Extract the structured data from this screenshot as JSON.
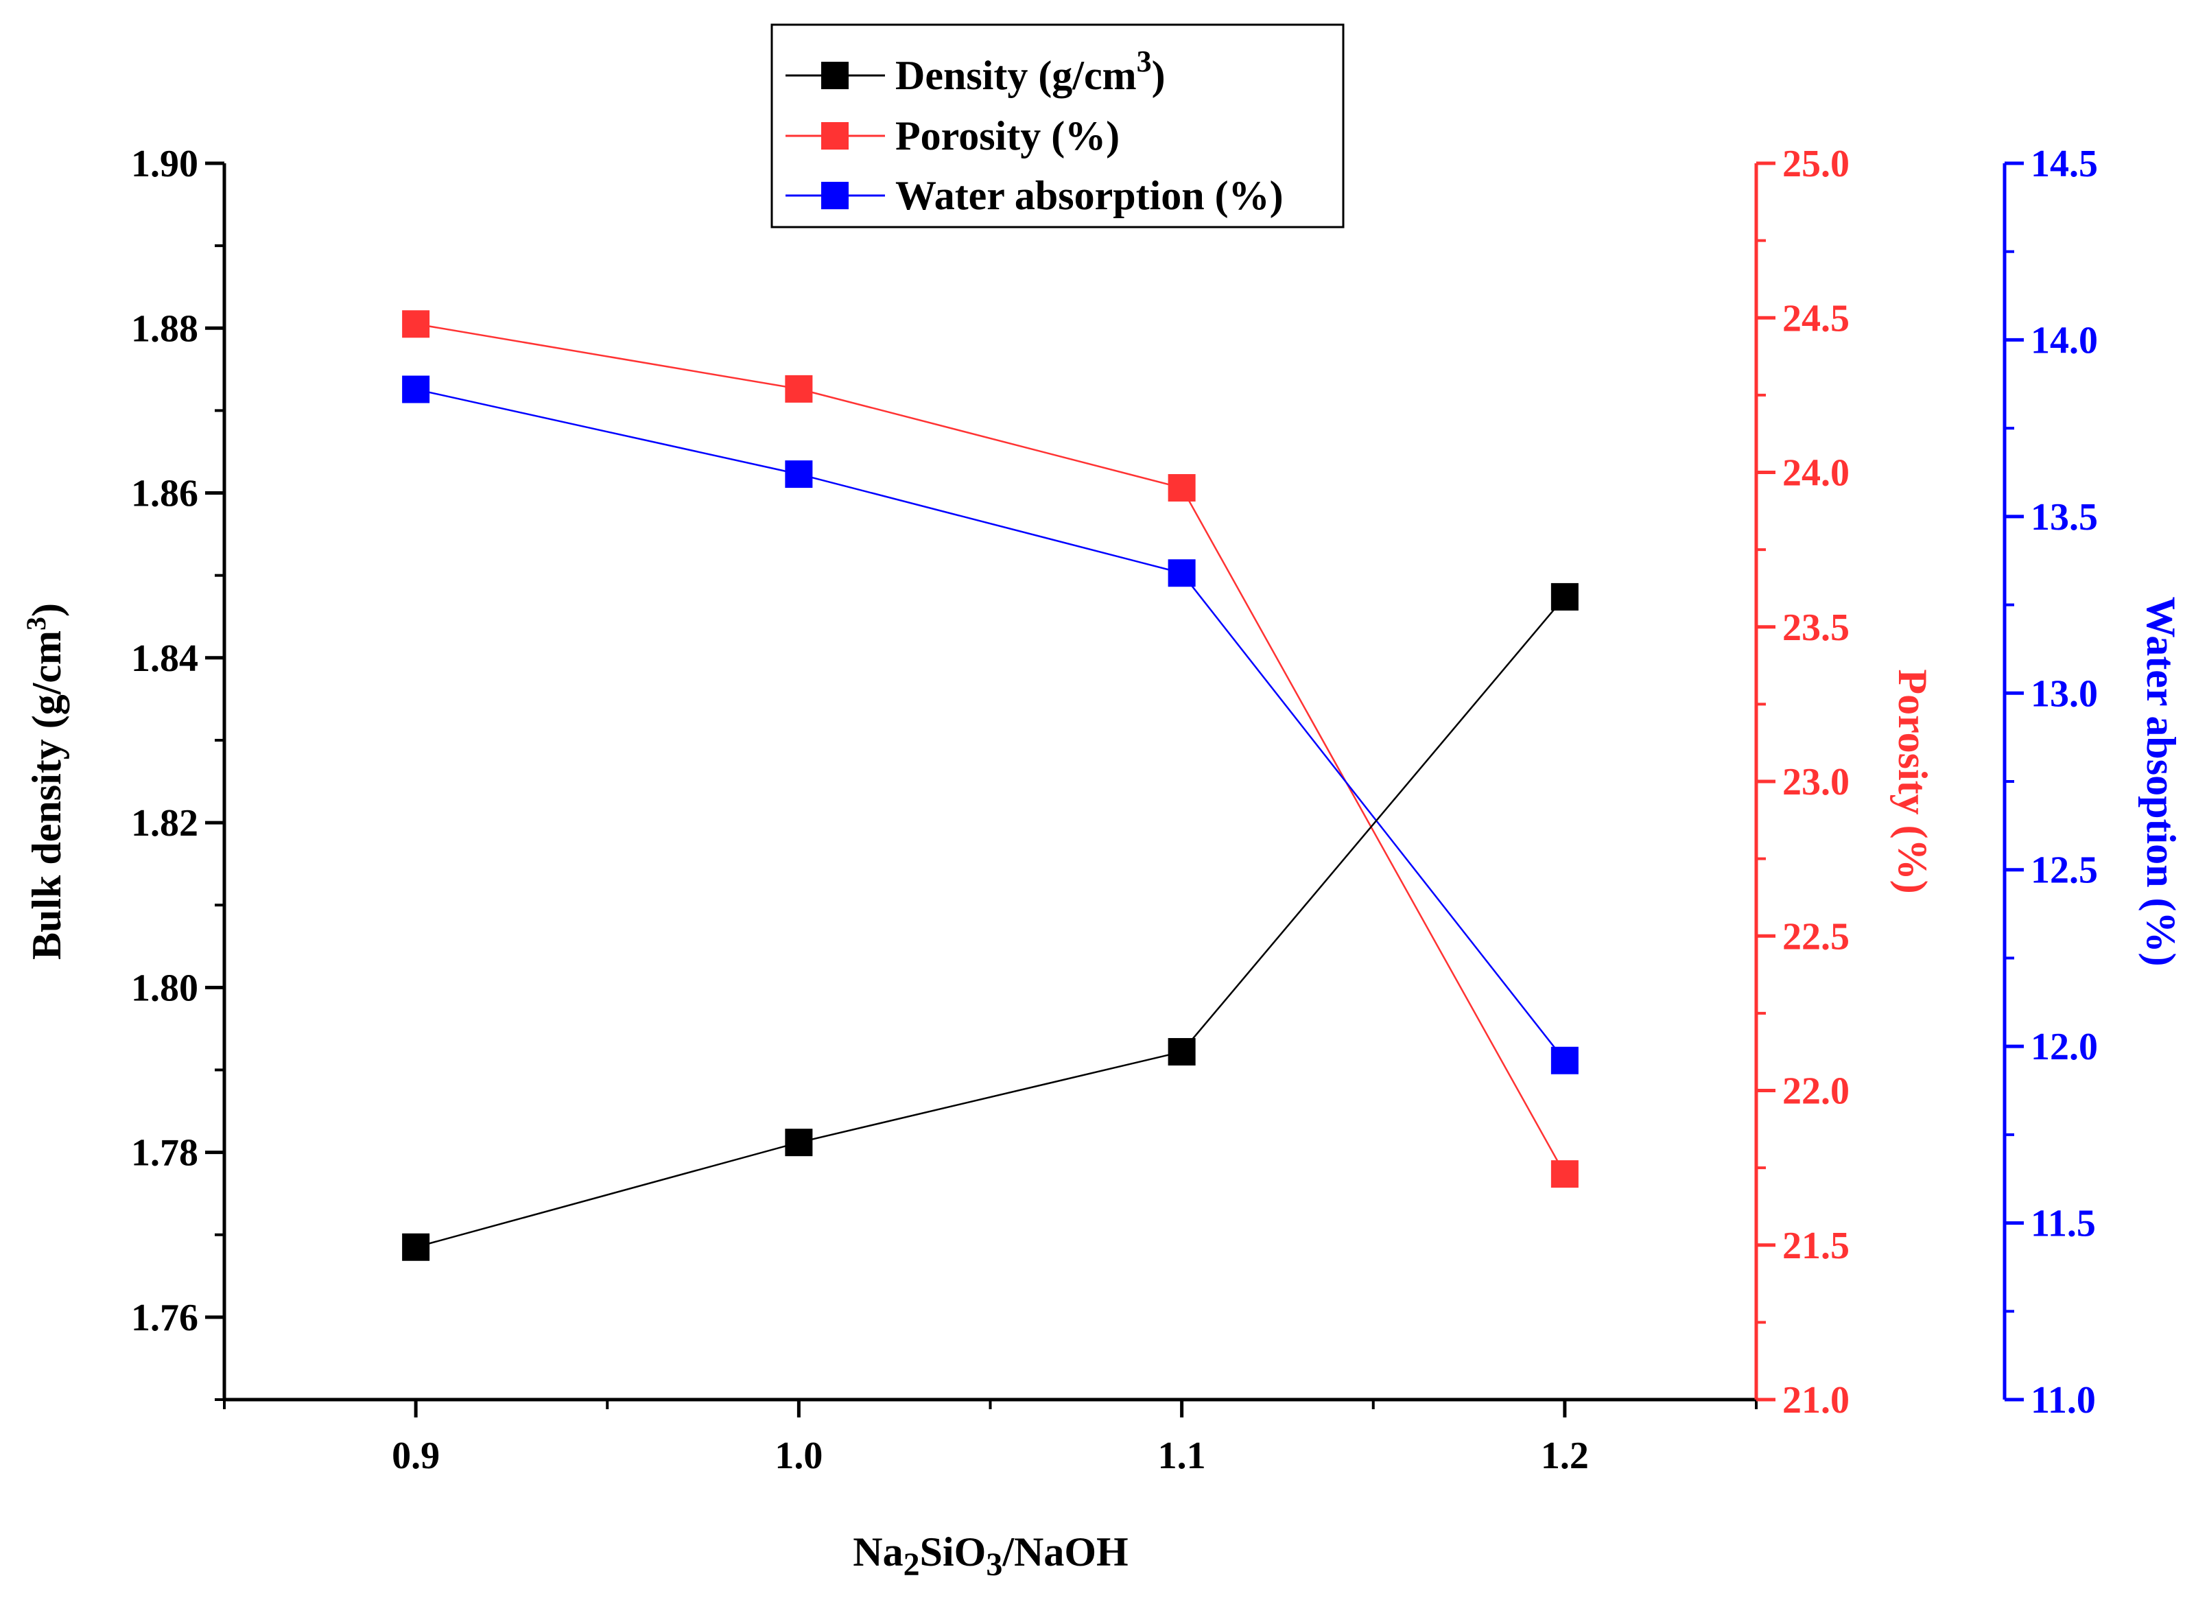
{
  "chart_data": {
    "type": "line",
    "x": [
      0.9,
      1.0,
      1.1,
      1.2
    ],
    "x_tick_labels": [
      "0.9",
      "1.0",
      "1.1",
      "1.2"
    ],
    "xlim": [
      0.85,
      1.25
    ],
    "xlabel": {
      "a": "Na",
      "b": "2",
      "c": "SiO",
      "d": "3",
      "e": "/NaOH"
    },
    "series": [
      {
        "name": "Density (g/cm",
        "name_sup": "3",
        "name_end": ")",
        "axis": "left",
        "color": "#000000",
        "values": [
          1.7685,
          1.7812,
          1.7922,
          1.8474
        ]
      },
      {
        "name": "Porosity (%)",
        "axis": "right1",
        "color": "#ff3333",
        "values": [
          24.48,
          24.27,
          23.95,
          21.73
        ]
      },
      {
        "name": "Water absorption (%)",
        "axis": "right2",
        "color": "#0000ff",
        "values": [
          13.86,
          13.62,
          13.34,
          11.96
        ]
      }
    ],
    "left_axis": {
      "label": "Bulk density (g/cm",
      "label_sup": "3",
      "label_end": ")",
      "ylim": [
        1.75,
        1.9
      ],
      "ticks": [
        "1.76",
        "1.78",
        "1.80",
        "1.82",
        "1.84",
        "1.86",
        "1.88",
        "1.90"
      ],
      "color": "#000000"
    },
    "right_axis_1": {
      "label": "Porosity (%)",
      "ylim": [
        21.0,
        25.0
      ],
      "ticks": [
        "21.0",
        "21.5",
        "22.0",
        "22.5",
        "23.0",
        "23.5",
        "24.0",
        "24.5",
        "25.0"
      ],
      "color": "#ff3333"
    },
    "right_axis_2": {
      "label": "Water absoption (%)",
      "ylim": [
        11.0,
        14.5
      ],
      "ticks": [
        "11.0",
        "11.5",
        "12.0",
        "12.5",
        "13.0",
        "13.5",
        "14.0",
        "14.5"
      ],
      "color": "#0000ff"
    },
    "legend_position": "top-center"
  }
}
